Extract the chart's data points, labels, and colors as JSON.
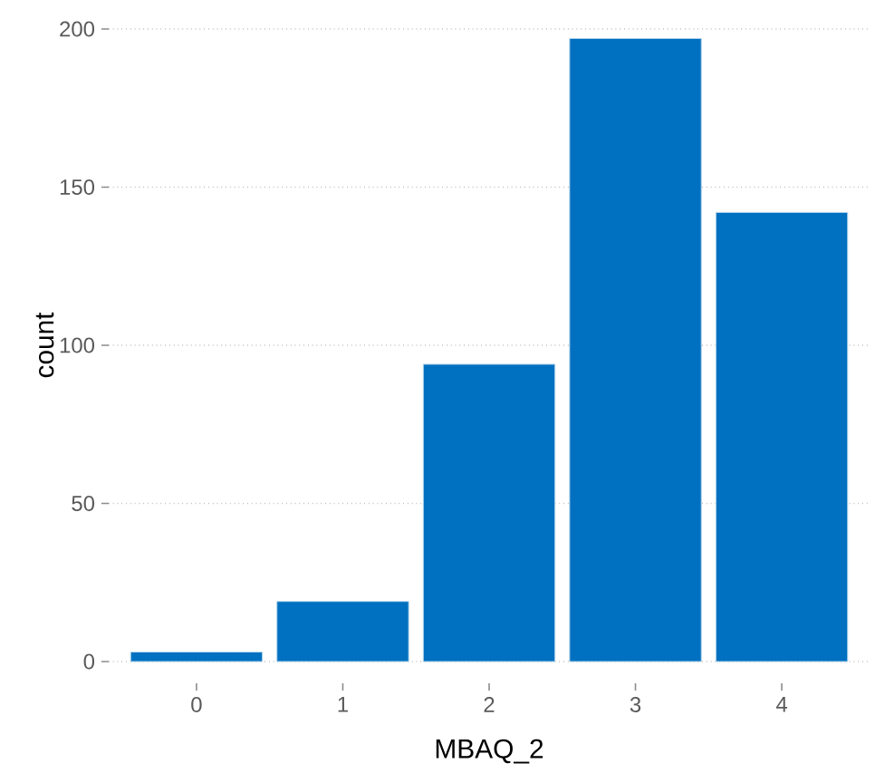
{
  "chart_data": {
    "type": "bar",
    "xlabel": "MBAQ_2",
    "ylabel": "count",
    "categories": [
      "0",
      "1",
      "2",
      "3",
      "4"
    ],
    "values": [
      3,
      19,
      94,
      197,
      142
    ],
    "color": "#0070c0",
    "ylim": [
      0,
      200
    ],
    "yticks": [
      0,
      50,
      100,
      150,
      200
    ],
    "grid": "y"
  }
}
